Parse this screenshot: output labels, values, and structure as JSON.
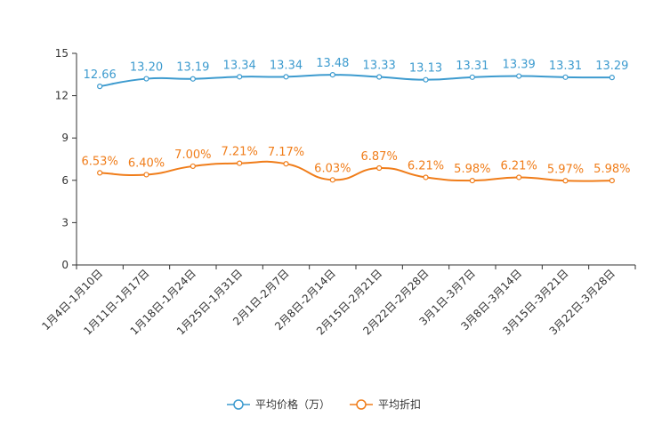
{
  "chart_data": {
    "type": "line",
    "title": "",
    "xlabel": "",
    "ylabel": "",
    "ylim": [
      0,
      15
    ],
    "yticks": [
      0,
      3,
      6,
      9,
      12,
      15
    ],
    "ytick_labels": [
      "0",
      "3",
      "6",
      "9",
      "12",
      "15"
    ],
    "categories": [
      "1月4日-1月10日",
      "1月11日-1月17日",
      "1月18日-1月24日",
      "1月25日-1月31日",
      "2月1日-2月7日",
      "2月8日-2月14日",
      "2月15日-2月21日",
      "2月22日-2月28日",
      "3月1日-3月7日",
      "3月8日-3月14日",
      "3月15日-3月21日",
      "3月22日-3月28日"
    ],
    "series": [
      {
        "name": "平均价格（万）",
        "color": "#3d9bcf",
        "values": [
          12.66,
          13.2,
          13.19,
          13.34,
          13.34,
          13.48,
          13.33,
          13.13,
          13.31,
          13.39,
          13.31,
          13.29
        ],
        "labels": [
          "12.66",
          "13.20",
          "13.19",
          "13.34",
          "13.34",
          "13.48",
          "13.33",
          "13.13",
          "13.31",
          "13.39",
          "13.31",
          "13.29"
        ]
      },
      {
        "name": "平均折扣",
        "color": "#f07d1a",
        "values": [
          6.53,
          6.4,
          7.0,
          7.21,
          7.17,
          6.03,
          6.87,
          6.21,
          5.98,
          6.21,
          5.97,
          5.98
        ],
        "labels": [
          "6.53%",
          "6.40%",
          "7.00%",
          "7.21%",
          "7.17%",
          "6.03%",
          "6.87%",
          "6.21%",
          "5.98%",
          "6.21%",
          "5.97%",
          "5.98%"
        ]
      }
    ],
    "legend_position": "bottom-center",
    "grid": false
  }
}
